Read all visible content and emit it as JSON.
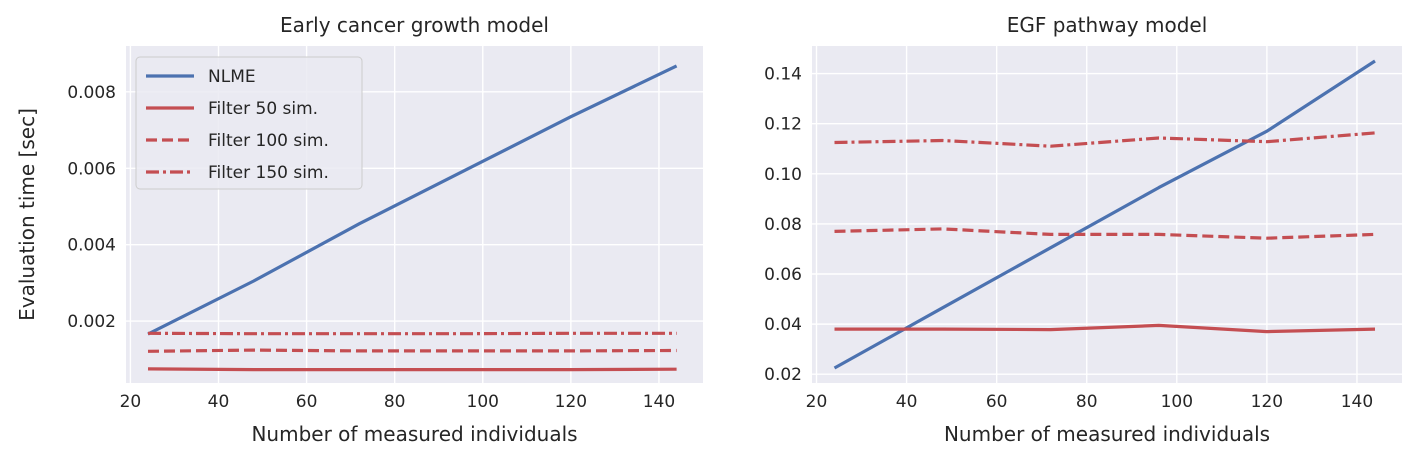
{
  "chart_data": [
    {
      "type": "line",
      "title": "Early cancer growth model",
      "xlabel": "Number of measured individuals",
      "ylabel": "Evaluation time [sec]",
      "xlim": [
        19,
        150
      ],
      "ylim": [
        0.00038,
        0.0092
      ],
      "xticks": [
        20,
        40,
        60,
        80,
        100,
        120,
        140
      ],
      "yticks": [
        0.002,
        0.004,
        0.006,
        0.008
      ],
      "ytick_labels": [
        "0.002",
        "0.004",
        "0.006",
        "0.008"
      ],
      "grid": true,
      "legend": "top-left",
      "series": [
        {
          "name": "NLME",
          "color": "#4c72b0",
          "style": "solid",
          "x": [
            24,
            48,
            72,
            96,
            120,
            144
          ],
          "y": [
            0.00166,
            0.00305,
            0.00455,
            0.00595,
            0.00735,
            0.00868
          ]
        },
        {
          "name": "Filter 50 sim.",
          "color": "#c44e52",
          "style": "solid",
          "x": [
            24,
            48,
            72,
            96,
            120,
            144
          ],
          "y": [
            0.00075,
            0.00073,
            0.00073,
            0.00073,
            0.00073,
            0.00074
          ]
        },
        {
          "name": "Filter 100 sim.",
          "color": "#c44e52",
          "style": "dashed",
          "x": [
            24,
            48,
            72,
            96,
            120,
            144
          ],
          "y": [
            0.00121,
            0.00124,
            0.00122,
            0.00122,
            0.00122,
            0.00123
          ]
        },
        {
          "name": "Filter 150 sim.",
          "color": "#c44e52",
          "style": "dashdot",
          "x": [
            24,
            48,
            72,
            96,
            120,
            144
          ],
          "y": [
            0.00168,
            0.00167,
            0.00167,
            0.00167,
            0.00168,
            0.00168
          ]
        }
      ]
    },
    {
      "type": "line",
      "title": "EGF pathway model",
      "xlabel": "Number of measured individuals",
      "ylabel": "",
      "xlim": [
        19,
        150
      ],
      "ylim": [
        0.0165,
        0.151
      ],
      "xticks": [
        20,
        40,
        60,
        80,
        100,
        120,
        140
      ],
      "yticks": [
        0.02,
        0.04,
        0.06,
        0.08,
        0.1,
        0.12,
        0.14
      ],
      "ytick_labels": [
        "0.02",
        "0.04",
        "0.06",
        "0.08",
        "0.10",
        "0.12",
        "0.14"
      ],
      "grid": true,
      "legend": "",
      "series": [
        {
          "color": "#4c72b0",
          "style": "solid",
          "x": [
            24,
            48,
            72,
            96,
            120,
            144
          ],
          "y": [
            0.0225,
            0.0465,
            0.0705,
            0.0945,
            0.117,
            0.145
          ]
        },
        {
          "color": "#c44e52",
          "style": "solid",
          "x": [
            24,
            48,
            72,
            96,
            120,
            144
          ],
          "y": [
            0.038,
            0.038,
            0.0378,
            0.0395,
            0.037,
            0.038
          ]
        },
        {
          "color": "#c44e52",
          "style": "dashed",
          "x": [
            24,
            48,
            72,
            96,
            120,
            144
          ],
          "y": [
            0.077,
            0.078,
            0.0758,
            0.0758,
            0.0743,
            0.0758
          ]
        },
        {
          "color": "#c44e52",
          "style": "dashdot",
          "x": [
            24,
            48,
            72,
            96,
            120,
            144
          ],
          "y": [
            0.1125,
            0.1133,
            0.111,
            0.1143,
            0.1128,
            0.1163
          ]
        }
      ]
    }
  ]
}
